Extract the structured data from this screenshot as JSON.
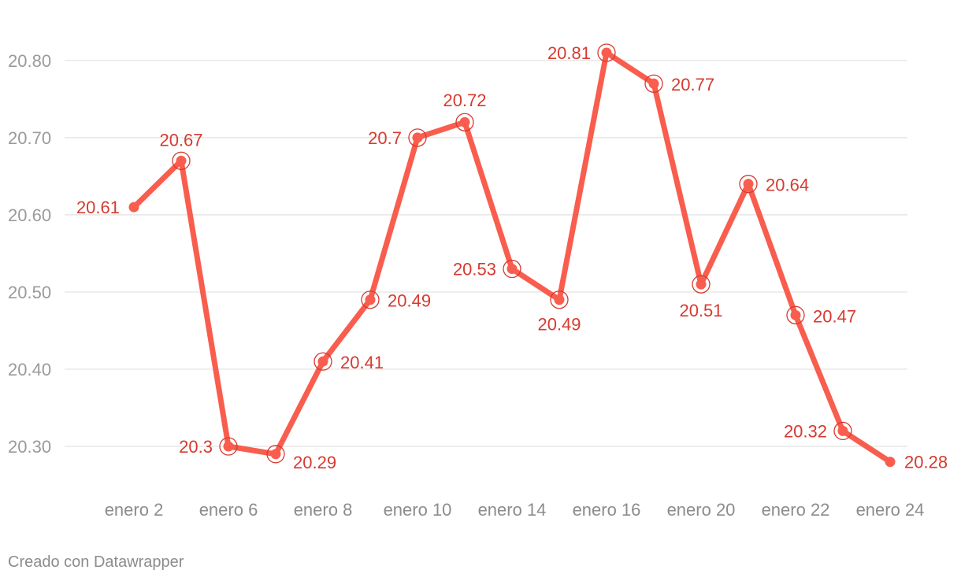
{
  "colors": {
    "line": "#f95d4e",
    "label": "#d63a2f",
    "grid": "#e2e2e2",
    "tick": "#9a9a9a"
  },
  "chart_data": {
    "type": "line",
    "title": "",
    "xlabel": "",
    "ylabel": "",
    "ylim": [
      20.22,
      20.83
    ],
    "yticks": [
      "20.30",
      "20.40",
      "20.50",
      "20.60",
      "20.70",
      "20.80"
    ],
    "grid": true,
    "legend": "none",
    "x_tick_labels": [
      "enero 2",
      "enero 6",
      "enero 8",
      "enero 10",
      "enero 14",
      "enero 16",
      "enero 20",
      "enero 22",
      "enero 24"
    ],
    "series": [
      {
        "values": [
          20.61,
          20.67,
          20.3,
          20.29,
          20.41,
          20.49,
          20.7,
          20.72,
          20.53,
          20.49,
          20.81,
          20.77,
          20.51,
          20.64,
          20.47,
          20.32,
          20.28
        ],
        "labels": [
          "20.61",
          "20.67",
          "20.3",
          "20.29",
          "20.41",
          "20.49",
          "20.7",
          "20.72",
          "20.53",
          "20.49",
          "20.81",
          "20.77",
          "20.51",
          "20.64",
          "20.47",
          "20.32",
          "20.28"
        ]
      }
    ]
  },
  "footer": {
    "credit": "Creado con Datawrapper"
  }
}
